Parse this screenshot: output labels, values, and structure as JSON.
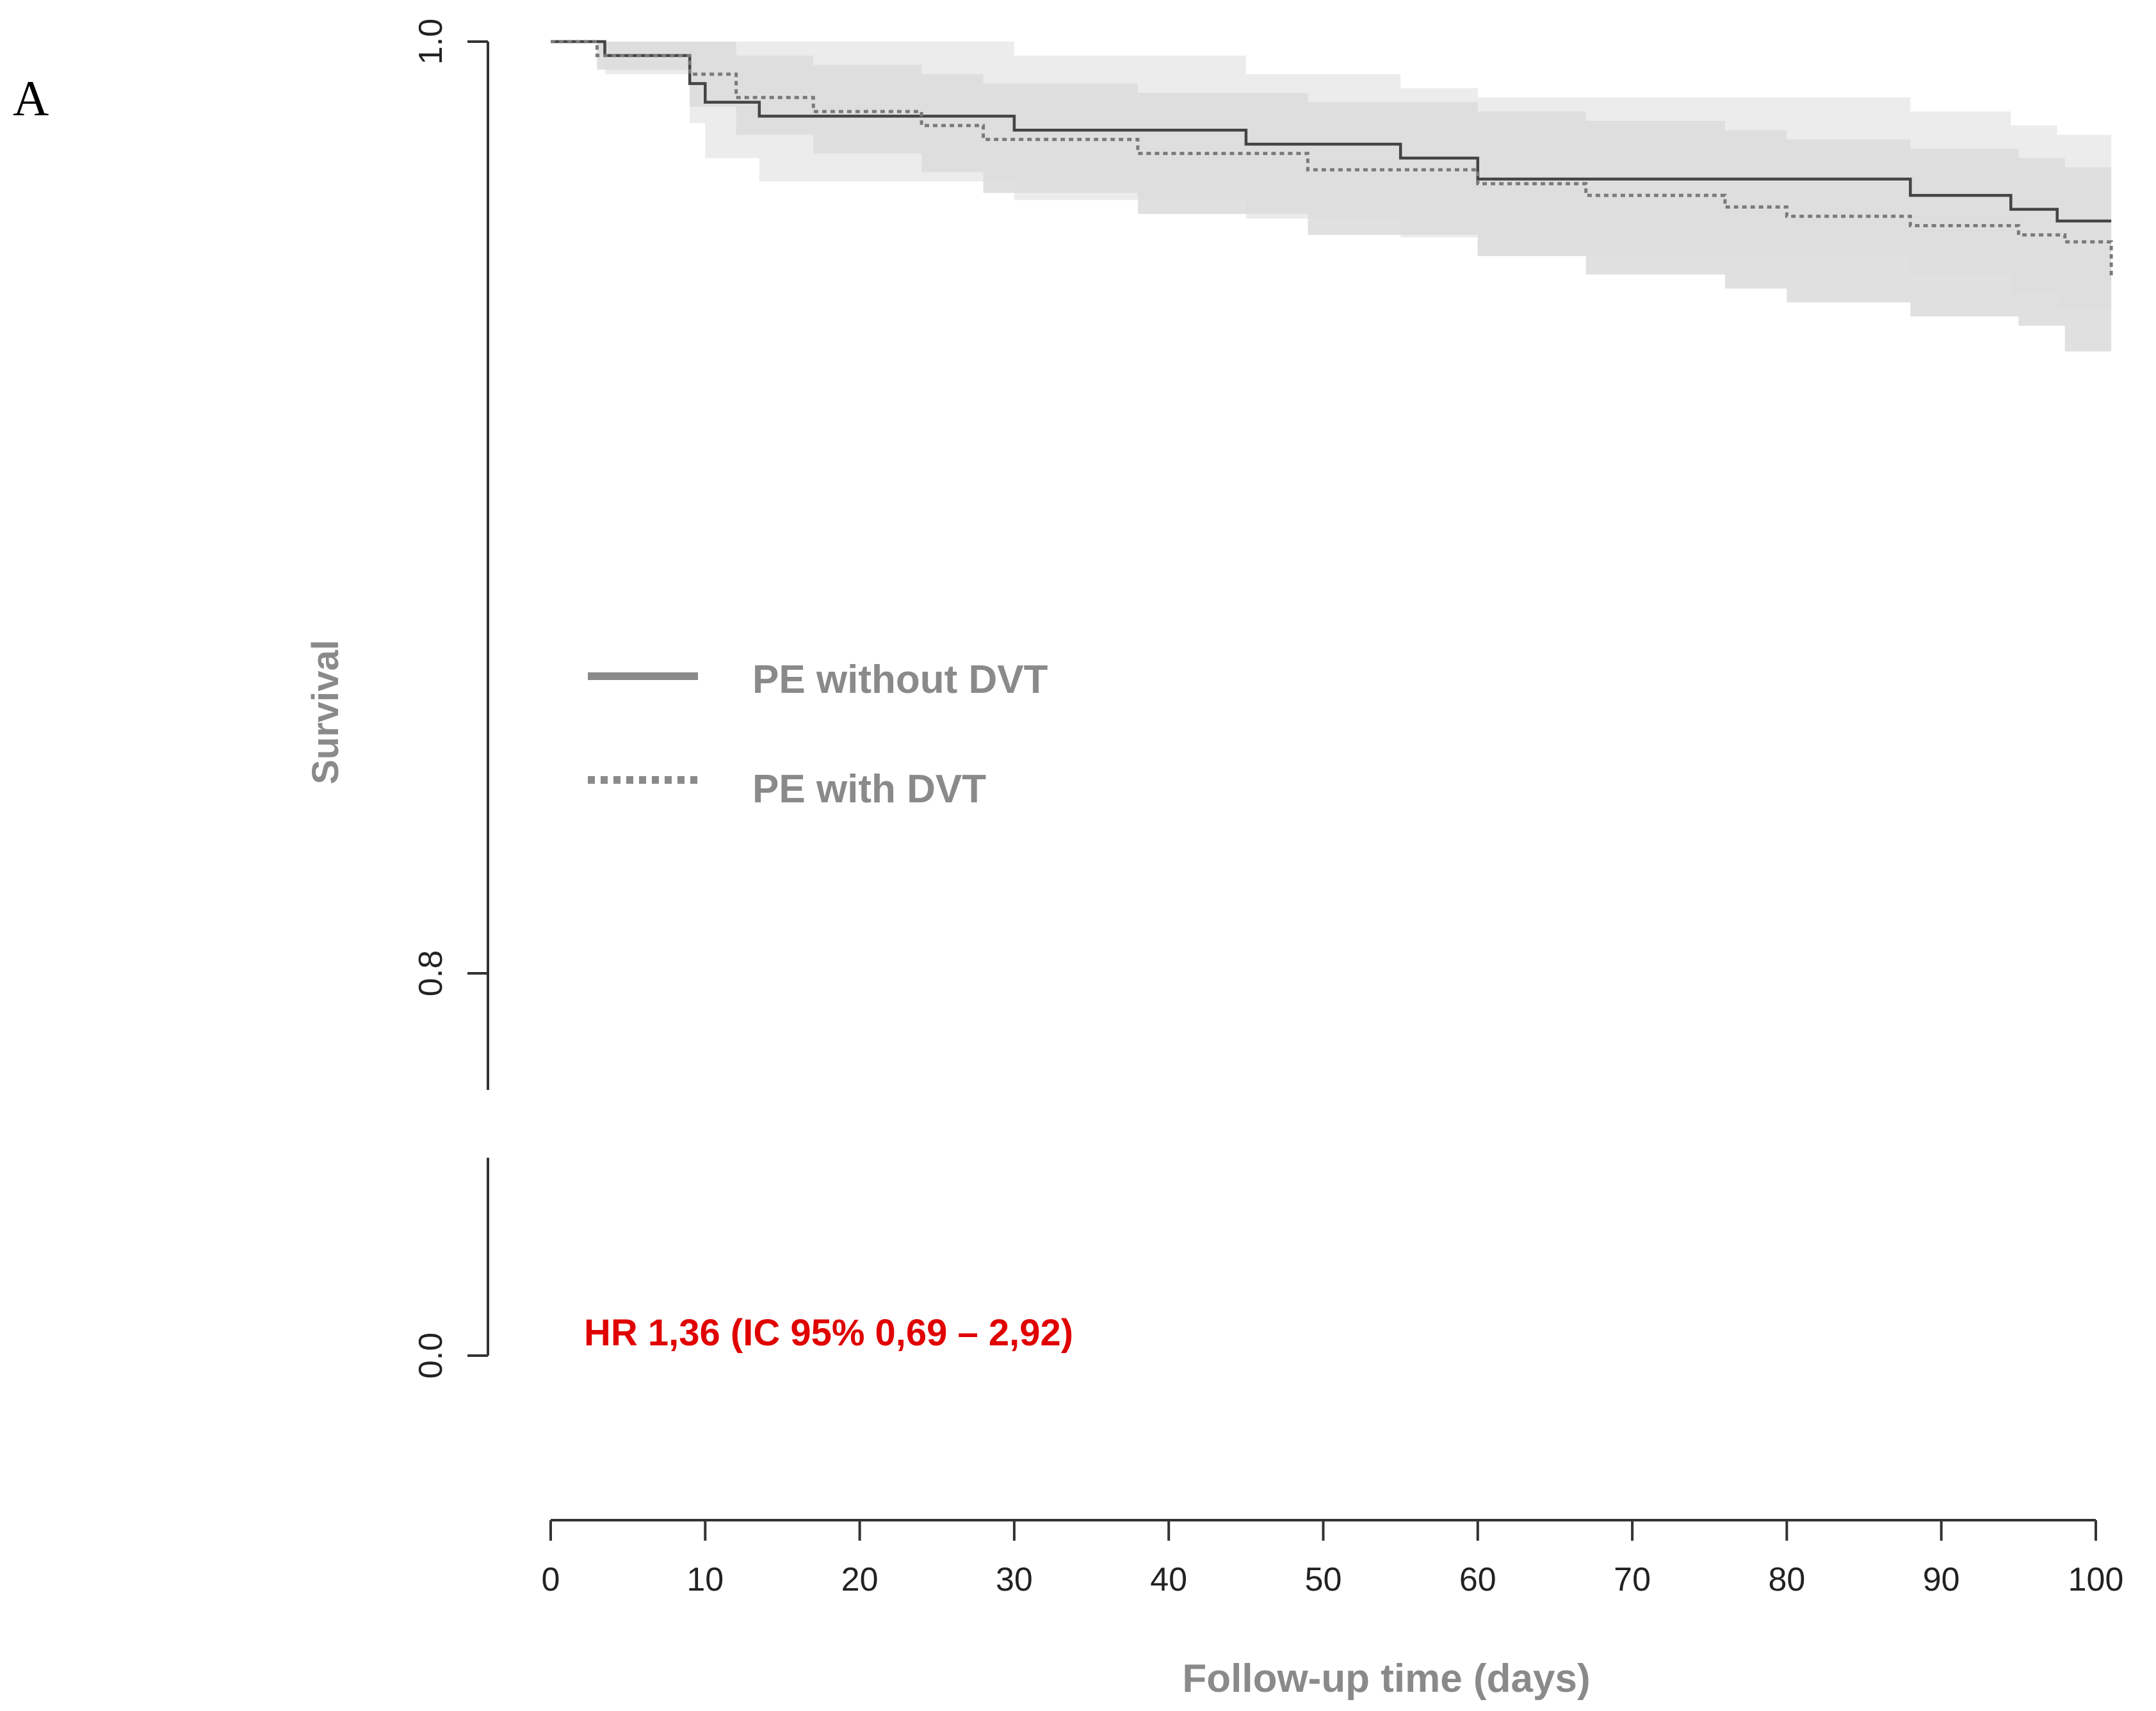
{
  "panel_label": "A",
  "annotation": "HR 1,36 (IC 95% 0,69 – 2,92)",
  "colors": {
    "annotation": "#e00000",
    "label_gray": "#8a8a8a",
    "line": "#444444",
    "ci_band_without": "#ececec",
    "ci_band_with": "#dddddd"
  },
  "chart_data": {
    "type": "line",
    "subtype": "kaplan-meier survival curve with 95% CI bands",
    "title": "",
    "xlabel": "Follow-up time (days)",
    "ylabel": "Survival",
    "xlim": [
      0,
      100
    ],
    "x_ticks": [
      0,
      10,
      20,
      30,
      40,
      50,
      60,
      70,
      80,
      90,
      100
    ],
    "x_tick_labels": [
      "0",
      "10",
      "20",
      "30",
      "40",
      "50",
      "60",
      "70",
      "80",
      "90",
      "100"
    ],
    "y_axis_break": true,
    "y_segments": [
      [
        0.8,
        1.0
      ],
      [
        0.0,
        0.0
      ]
    ],
    "y_ticks": [
      1.0,
      0.8,
      0.0
    ],
    "y_tick_labels": [
      "1.0",
      "0.8",
      "0.0"
    ],
    "legend": [
      {
        "label": "PE without DVT",
        "style": "solid"
      },
      {
        "label": "PE with DVT",
        "style": "dotted"
      }
    ],
    "series": [
      {
        "name": "PE without DVT",
        "style": "solid",
        "x": [
          0,
          3.5,
          9,
          10,
          13.5,
          30,
          45,
          55,
          60,
          88,
          94.5,
          97.5,
          101
        ],
        "y": [
          1.0,
          0.997,
          0.991,
          0.987,
          0.984,
          0.981,
          0.978,
          0.975,
          0.9705,
          0.967,
          0.964,
          0.9615,
          0.9615
        ],
        "ci_lower": [
          1.0,
          0.993,
          0.9825,
          0.975,
          0.97,
          0.966,
          0.962,
          0.958,
          0.954,
          0.95,
          0.946,
          0.943,
          0.943
        ],
        "ci_upper": [
          1.0,
          1.0,
          1.0,
          1.0,
          1.0,
          0.997,
          0.993,
          0.99,
          0.988,
          0.985,
          0.982,
          0.98,
          0.98
        ]
      },
      {
        "name": "PE with DVT",
        "style": "dotted",
        "x": [
          0,
          3,
          9,
          12,
          17,
          24,
          28,
          38,
          49,
          60,
          67,
          76,
          80,
          88,
          95,
          98,
          101
        ],
        "y": [
          1.0,
          0.997,
          0.993,
          0.988,
          0.985,
          0.982,
          0.979,
          0.976,
          0.9725,
          0.9695,
          0.967,
          0.9645,
          0.9625,
          0.9605,
          0.9585,
          0.957,
          0.949
        ],
        "ci_lower": [
          1.0,
          0.994,
          0.986,
          0.98,
          0.976,
          0.972,
          0.9675,
          0.963,
          0.9585,
          0.954,
          0.95,
          0.947,
          0.944,
          0.941,
          0.939,
          0.9335,
          0.9335
        ],
        "ci_upper": [
          1.0,
          1.0,
          1.0,
          0.997,
          0.995,
          0.993,
          0.991,
          0.989,
          0.987,
          0.985,
          0.983,
          0.981,
          0.979,
          0.977,
          0.975,
          0.973,
          0.973
        ]
      }
    ]
  }
}
